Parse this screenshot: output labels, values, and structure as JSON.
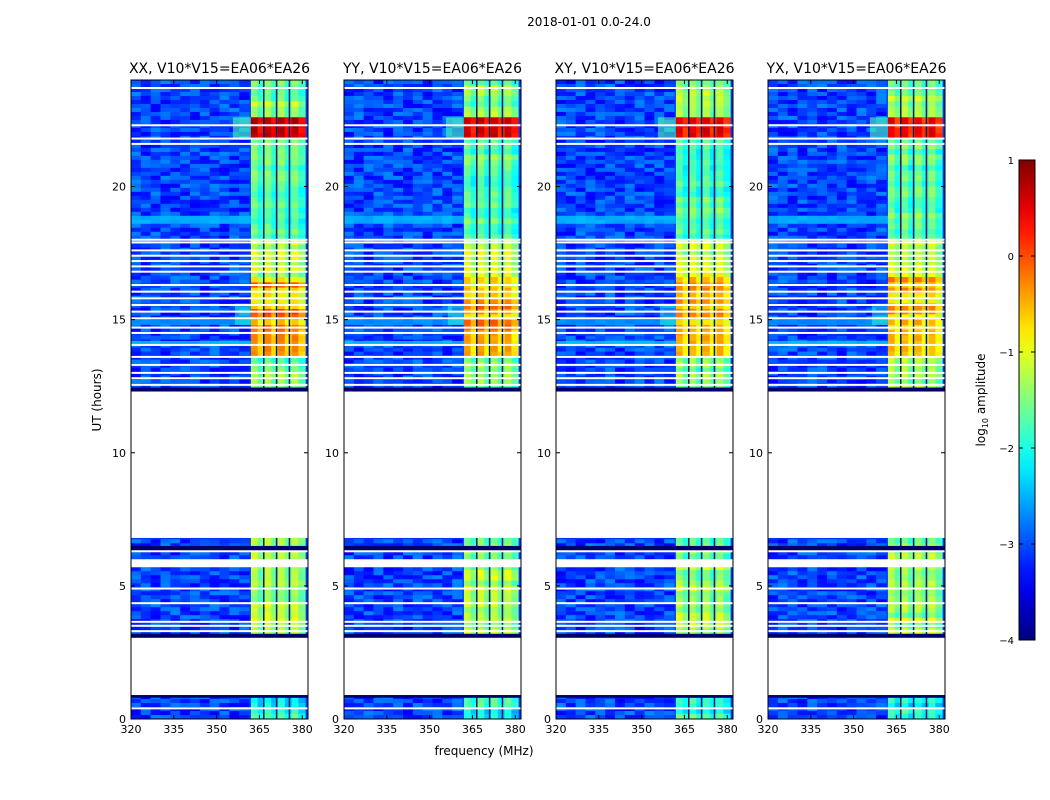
{
  "chart_data": {
    "type": "heatmap",
    "suptitle": "2018-01-01 0.0-24.0",
    "xlabel": "frequency (MHz)",
    "ylabel": "UT (hours)",
    "xlim": [
      320,
      382
    ],
    "ylim": [
      0,
      24
    ],
    "xticks": [
      320,
      335,
      350,
      365,
      380
    ],
    "yticks": [
      0,
      5,
      10,
      15,
      20
    ],
    "panels": [
      {
        "title": "XX, V10*V15=EA06*EA26",
        "flare": 0.85
      },
      {
        "title": "YY, V10*V15=EA06*EA26",
        "flare": 0.7
      },
      {
        "title": "XY, V10*V15=EA06*EA26",
        "flare": 0.6
      },
      {
        "title": "YX, V10*V15=EA06*EA26",
        "flare": 0.55
      }
    ],
    "colorbar": {
      "label": "log",
      "label_sub": "10",
      "label_tail": " amplitude",
      "min": -4,
      "max": 1,
      "ticks": [
        1,
        0,
        -1,
        -2,
        -3,
        -4
      ],
      "tick_labels": [
        "1",
        "0",
        "−1",
        "−2",
        "−3",
        "−4"
      ],
      "colormap": "jet"
    },
    "data_gaps_hours": [
      [
        0.85,
        3.1
      ],
      [
        5.7,
        6.0
      ],
      [
        6.8,
        12.3
      ]
    ],
    "bright_band_mhz": [
      362,
      381
    ],
    "channel_dividers_mhz": [
      366.5,
      371,
      375.5
    ],
    "flag_lines_hours": [
      0.4,
      3.3,
      3.5,
      3.65,
      4.35,
      4.9,
      6.3,
      12.55,
      12.8,
      13.0,
      13.3,
      13.6,
      14.05,
      14.5,
      14.7,
      15.05,
      15.3,
      15.55,
      15.8,
      16.05,
      16.3,
      16.8,
      17.0,
      17.2,
      17.4,
      17.6,
      17.9,
      18.0,
      21.6,
      21.8,
      22.3,
      23.7
    ]
  }
}
